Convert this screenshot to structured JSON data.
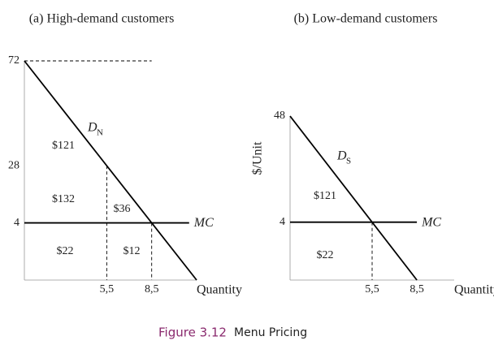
{
  "chart_data": [
    {
      "type": "line",
      "title": "(a) High-demand customers",
      "xlabel": "Quantity",
      "xlim": [
        0,
        11.5
      ],
      "ylim": [
        -20,
        72
      ],
      "xticks": [
        {
          "value": 5.5,
          "label": "5,5"
        },
        {
          "value": 8.5,
          "label": "8,5"
        }
      ],
      "yticks": [
        72,
        28,
        4
      ],
      "series": [
        {
          "name": "D",
          "subscript": "N",
          "color": "#000000",
          "x": [
            0,
            11.5
          ],
          "values": [
            72,
            -20
          ]
        },
        {
          "name": "MC",
          "color": "#000000",
          "x": [
            0,
            11
          ],
          "values": [
            4,
            4
          ]
        }
      ],
      "annotations": [
        "$121",
        "$132",
        "$36",
        "$22",
        "$12"
      ]
    },
    {
      "type": "line",
      "title": "(b) Low-demand customers",
      "xlabel": "Quantity",
      "ylabel": "$/Unit",
      "xlim": [
        0,
        11
      ],
      "ylim": [
        -20,
        48
      ],
      "xticks": [
        {
          "value": 5.5,
          "label": "5,5"
        },
        {
          "value": 8.5,
          "label": "8,5"
        }
      ],
      "yticks": [
        48,
        4
      ],
      "series": [
        {
          "name": "D",
          "subscript": "S",
          "color": "#000000",
          "x": [
            0,
            8.5
          ],
          "values": [
            48,
            -20
          ]
        },
        {
          "name": "MC",
          "color": "#000000",
          "x": [
            0,
            8.5
          ],
          "values": [
            4,
            4
          ]
        }
      ],
      "annotations": [
        "$121",
        "$22"
      ]
    }
  ],
  "caption": {
    "label": "Figure 3.12",
    "text": "Menu Pricing"
  }
}
